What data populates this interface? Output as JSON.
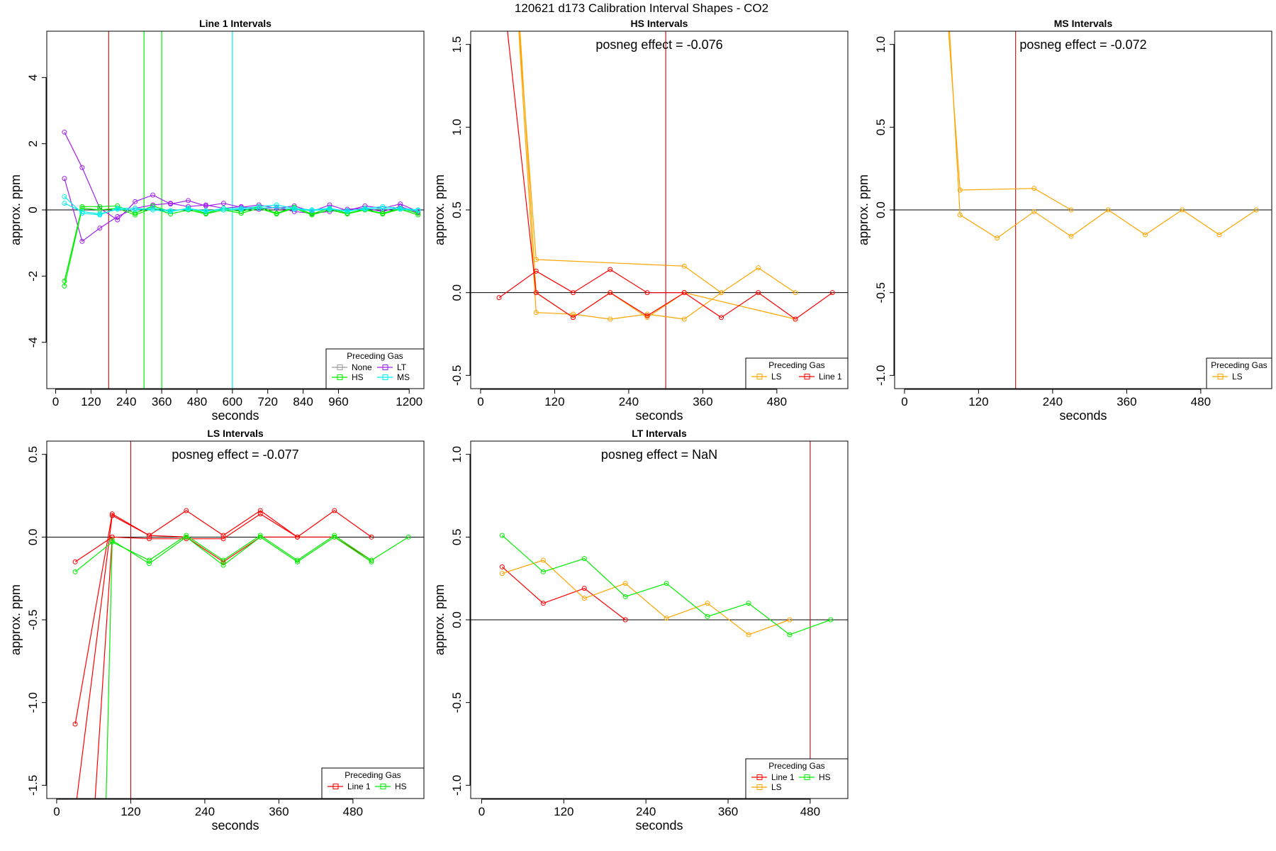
{
  "figure": {
    "title": "120621  d173   Calibration Interval Shapes - CO2"
  },
  "colors": {
    "None": "#999999",
    "LT": "#a020f0",
    "HS": "#00ee00",
    "MS": "#00eeee",
    "LS": "#ffa500",
    "Line 1": "#ff0000",
    "marker_line": "#b22222",
    "zero_line": "#000000"
  },
  "chart_data": [
    {
      "id": "line1",
      "type": "line",
      "title": "Line 1 Intervals",
      "xlabel": "seconds",
      "ylabel": "approx. ppm",
      "xlim": [
        -30,
        1250
      ],
      "ylim": [
        -5.4,
        5.4
      ],
      "xticks": [
        0,
        120,
        240,
        360,
        480,
        600,
        720,
        840,
        960,
        1200
      ],
      "xtick_labels": [
        "0",
        "120",
        "240",
        "360",
        "480",
        "600",
        "720",
        "840",
        "960",
        "1200"
      ],
      "yticks": [
        -4,
        -2,
        0,
        2,
        4
      ],
      "ytick_labels": [
        "-4",
        "-2",
        "0",
        "2",
        "4"
      ],
      "vlines": [
        {
          "x": 180,
          "color": "marker_line"
        },
        {
          "x": 300,
          "color": "HS"
        },
        {
          "x": 360,
          "color": "HS"
        },
        {
          "x": 600,
          "color": "MS"
        }
      ],
      "annotation": "",
      "legend": {
        "title": "Preceding Gas",
        "entries": [
          "None",
          "LT",
          "HS",
          "MS"
        ],
        "columns": 2,
        "placement": "bottom-right"
      },
      "series": [
        {
          "gas": "LT",
          "x": [
            30,
            90,
            150,
            210,
            270,
            330,
            390,
            450,
            510,
            570,
            630,
            690,
            750,
            810,
            870,
            930,
            990,
            1050,
            1110,
            1170,
            1230
          ],
          "y": [
            2.35,
            1.28,
            0.05,
            -0.3,
            0.25,
            0.45,
            0.18,
            0.28,
            0.12,
            0.2,
            0.08,
            0.15,
            0.05,
            0.12,
            -0.05,
            0.15,
            -0.02,
            0.12,
            0.05,
            0.18,
            -0.05
          ]
        },
        {
          "gas": "LT",
          "x": [
            30,
            90,
            150,
            210,
            270,
            330,
            390,
            450,
            510,
            570,
            630,
            690,
            750,
            810,
            870,
            930,
            990,
            1050,
            1110,
            1170,
            1230
          ],
          "y": [
            0.95,
            -0.95,
            -0.55,
            -0.2,
            0.05,
            0.15,
            0.2,
            0.1,
            0.15,
            0.05,
            0.1,
            0.02,
            0.08,
            -0.05,
            -0.1,
            -0.05,
            0.02,
            0.05,
            -0.05,
            0.1,
            -0.08
          ]
        },
        {
          "gas": "HS",
          "x": [
            30,
            90,
            150,
            210,
            270,
            330,
            390,
            450,
            510,
            570,
            630,
            690,
            750,
            810,
            870,
            930,
            990,
            1050,
            1110,
            1170,
            1230
          ],
          "y": [
            -2.15,
            0.1,
            0.1,
            0.12,
            -0.1,
            0.12,
            -0.05,
            0.05,
            -0.1,
            0.05,
            -0.05,
            0.1,
            -0.1,
            0.08,
            -0.12,
            0.05,
            -0.1,
            0.02,
            -0.1,
            0.05,
            -0.1
          ]
        },
        {
          "gas": "HS",
          "x": [
            30,
            90,
            150,
            210,
            270,
            330,
            390,
            450,
            510,
            570,
            630,
            690,
            750,
            810,
            870,
            930,
            990,
            1050,
            1110,
            1170,
            1230
          ],
          "y": [
            -2.3,
            0.05,
            0.0,
            0.05,
            -0.15,
            0.05,
            -0.12,
            0.0,
            -0.12,
            0.0,
            -0.1,
            0.05,
            -0.12,
            0.05,
            -0.15,
            0.0,
            -0.12,
            0.0,
            -0.12,
            0.02,
            -0.15
          ]
        },
        {
          "gas": "MS",
          "x": [
            30,
            90,
            150,
            210,
            270,
            330,
            390,
            450,
            510,
            570,
            630,
            690,
            750,
            810,
            870,
            930,
            990,
            1050,
            1110,
            1170,
            1230
          ],
          "y": [
            0.4,
            -0.1,
            -0.15,
            0.05,
            0.05,
            0.0,
            -0.05,
            0.05,
            -0.05,
            0.05,
            0.05,
            0.1,
            0.15,
            0.05,
            0.0,
            0.05,
            -0.05,
            0.05,
            0.1,
            0.05,
            0.0
          ]
        },
        {
          "gas": "MS",
          "x": [
            30,
            90,
            150,
            210,
            270,
            330,
            390,
            450,
            510,
            570,
            630,
            690,
            750,
            810,
            870,
            930,
            990,
            1050,
            1110,
            1170,
            1230
          ],
          "y": [
            0.2,
            -0.05,
            -0.12,
            0.02,
            0.0,
            0.05,
            -0.02,
            0.02,
            -0.02,
            0.0,
            0.02,
            0.05,
            0.08,
            0.02,
            -0.02,
            0.02,
            -0.02,
            0.02,
            0.05,
            0.02,
            -0.02
          ]
        }
      ]
    },
    {
      "id": "hs",
      "type": "line",
      "title": "HS Intervals",
      "xlabel": "seconds",
      "ylabel": "approx. ppm",
      "xlim": [
        -16,
        595
      ],
      "ylim": [
        -0.58,
        1.58
      ],
      "xticks": [
        0,
        120,
        240,
        360,
        480
      ],
      "xtick_labels": [
        "0",
        "120",
        "240",
        "360",
        "480"
      ],
      "yticks": [
        -0.5,
        0.0,
        0.5,
        1.0,
        1.5
      ],
      "ytick_labels": [
        "-0.5",
        "0.0",
        "0.5",
        "1.0",
        "1.5"
      ],
      "vlines": [
        {
          "x": 300,
          "color": "marker_line"
        }
      ],
      "annotation": "posneg effect = -0.076",
      "legend": {
        "title": "Preceding Gas",
        "entries": [
          "LS",
          "Line 1"
        ],
        "columns": 2,
        "placement": "bottom-right"
      },
      "series": [
        {
          "gas": "LS",
          "x": [
            60,
            90,
            150,
            210,
            270,
            330,
            390,
            450,
            510
          ],
          "y": [
            1.7,
            -0.12,
            -0.13,
            -0.16,
            -0.13,
            -0.16,
            0.0,
            0.15,
            0.0
          ]
        },
        {
          "gas": "LS",
          "x": [
            60,
            90,
            330,
            390
          ],
          "y": [
            1.7,
            0.2,
            0.16,
            0.0
          ]
        },
        {
          "gas": "LS",
          "x": [
            62,
            90,
            150,
            210,
            270,
            330,
            510
          ],
          "y": [
            1.7,
            0.0,
            -0.15,
            0.0,
            -0.15,
            0.0,
            -0.16
          ]
        },
        {
          "gas": "Line 1",
          "x": [
            30,
            90,
            150,
            210,
            270,
            330,
            390,
            450,
            510,
            570
          ],
          "y": [
            -0.03,
            0.13,
            0.0,
            0.14,
            0.0,
            0.0,
            -0.15,
            0.0,
            -0.16,
            0.0
          ]
        },
        {
          "gas": "Line 1",
          "x": [
            40,
            90,
            150,
            210,
            270,
            330
          ],
          "y": [
            1.7,
            0.0,
            -0.15,
            0.0,
            -0.14,
            0.0
          ]
        }
      ]
    },
    {
      "id": "ms",
      "type": "line",
      "title": "MS Intervals",
      "xlabel": "seconds",
      "ylabel": "approx. ppm",
      "xlim": [
        -16,
        595
      ],
      "ylim": [
        -1.08,
        1.08
      ],
      "xticks": [
        0,
        120,
        240,
        360,
        480
      ],
      "xtick_labels": [
        "0",
        "120",
        "240",
        "360",
        "480"
      ],
      "yticks": [
        -1.0,
        -0.5,
        0.0,
        0.5,
        1.0
      ],
      "ytick_labels": [
        "-1.0",
        "-0.5",
        "0.0",
        "0.5",
        "1.0"
      ],
      "vlines": [
        {
          "x": 180,
          "color": "marker_line"
        }
      ],
      "annotation": "posneg effect = -0.072",
      "legend": {
        "title": "Preceding Gas",
        "entries": [
          "LS"
        ],
        "columns": 1,
        "placement": "bottom-right"
      },
      "series": [
        {
          "gas": "LS",
          "x": [
            70,
            90,
            210,
            270
          ],
          "y": [
            1.15,
            0.12,
            0.13,
            0.0
          ]
        },
        {
          "gas": "LS",
          "x": [
            72,
            90,
            150,
            210,
            270,
            330,
            390,
            450,
            510,
            570
          ],
          "y": [
            1.15,
            -0.03,
            -0.17,
            -0.01,
            -0.16,
            0.0,
            -0.15,
            0.0,
            -0.15,
            0.0
          ]
        }
      ]
    },
    {
      "id": "ls",
      "type": "line",
      "title": "LS Intervals",
      "xlabel": "seconds",
      "ylabel": "approx. ppm",
      "xlim": [
        -16,
        595
      ],
      "ylim": [
        -1.58,
        0.58
      ],
      "xticks": [
        0,
        120,
        240,
        360,
        480
      ],
      "xtick_labels": [
        "0",
        "120",
        "240",
        "360",
        "480"
      ],
      "yticks": [
        -1.5,
        -1.0,
        -0.5,
        0.0,
        0.5
      ],
      "ytick_labels": [
        "-1.5",
        "-1.0",
        "-0.5",
        "0.0",
        "0.5"
      ],
      "vlines": [
        {
          "x": 120,
          "color": "marker_line"
        }
      ],
      "annotation": "posneg effect = -0.077",
      "legend": {
        "title": "Preceding Gas",
        "entries": [
          "Line 1",
          "HS"
        ],
        "columns": 2,
        "placement": "bottom-right"
      },
      "series": [
        {
          "gas": "Line 1",
          "x": [
            30,
            90,
            150,
            210,
            270,
            330,
            390,
            450,
            510
          ],
          "y": [
            -1.13,
            0.14,
            0.01,
            0.16,
            0.01,
            0.16,
            0.0,
            0.16,
            0.0
          ]
        },
        {
          "gas": "Line 1",
          "x": [
            30,
            90,
            150,
            210,
            270,
            330,
            390,
            450,
            510
          ],
          "y": [
            -0.15,
            0.0,
            -0.01,
            -0.01,
            -0.01,
            0.14,
            0.0,
            0.0,
            -0.14
          ]
        },
        {
          "gas": "Line 1",
          "x": [
            32,
            90,
            150,
            210,
            270,
            330,
            390
          ],
          "y": [
            -1.6,
            0.13,
            0.01,
            0.0,
            -0.15,
            0.0,
            0.0
          ]
        },
        {
          "gas": "Line 1",
          "x": [
            62,
            90
          ],
          "y": [
            -1.6,
            0.0
          ]
        },
        {
          "gas": "HS",
          "x": [
            30,
            90,
            150,
            210,
            270,
            330,
            390,
            450,
            510,
            570
          ],
          "y": [
            -0.21,
            -0.03,
            -0.14,
            0.01,
            -0.14,
            0.01,
            -0.14,
            0.01,
            -0.14,
            0.0
          ]
        },
        {
          "gas": "HS",
          "x": [
            80,
            90,
            150,
            210,
            270,
            330,
            390,
            450,
            510
          ],
          "y": [
            -1.6,
            -0.02,
            -0.16,
            0.0,
            -0.17,
            0.0,
            -0.15,
            0.0,
            -0.15
          ]
        }
      ]
    },
    {
      "id": "lt",
      "type": "line",
      "title": "LT Intervals",
      "xlabel": "seconds",
      "ylabel": "approx. ppm",
      "xlim": [
        -16,
        535
      ],
      "ylim": [
        -1.08,
        1.08
      ],
      "xticks": [
        0,
        120,
        240,
        360,
        480
      ],
      "xtick_labels": [
        "0",
        "120",
        "240",
        "360",
        "480"
      ],
      "yticks": [
        -1.0,
        -0.5,
        0.0,
        0.5,
        1.0
      ],
      "ytick_labels": [
        "-1.0",
        "-0.5",
        "0.0",
        "0.5",
        "1.0"
      ],
      "vlines": [
        {
          "x": 480,
          "color": "marker_line"
        }
      ],
      "annotation": "posneg effect = NaN",
      "legend": {
        "title": "Preceding Gas",
        "entries": [
          "Line 1",
          "HS",
          "LS"
        ],
        "columns": 2,
        "placement": "bottom-right"
      },
      "series": [
        {
          "gas": "Line 1",
          "x": [
            30,
            90,
            150,
            210
          ],
          "y": [
            0.32,
            0.1,
            0.19,
            0.0
          ]
        },
        {
          "gas": "LS",
          "x": [
            30,
            90,
            150,
            210,
            270,
            330,
            390,
            450
          ],
          "y": [
            0.28,
            0.36,
            0.13,
            0.22,
            0.01,
            0.1,
            -0.09,
            0.0
          ]
        },
        {
          "gas": "HS",
          "x": [
            30,
            90,
            150,
            210,
            270,
            330,
            390,
            450,
            510
          ],
          "y": [
            0.51,
            0.29,
            0.37,
            0.14,
            0.22,
            0.02,
            0.1,
            -0.09,
            0.0
          ]
        }
      ]
    }
  ]
}
